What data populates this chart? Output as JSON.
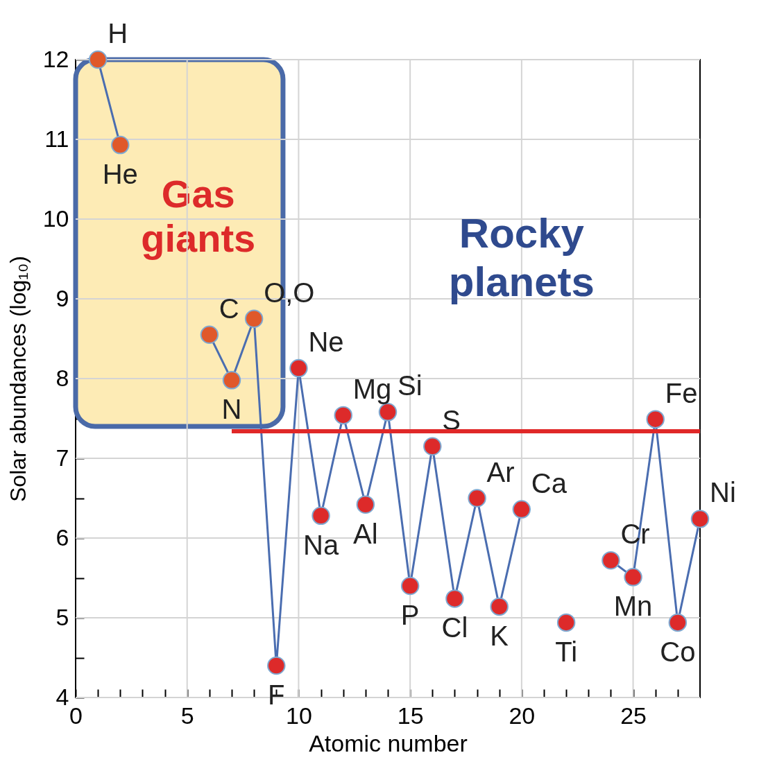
{
  "chart_data": {
    "type": "line",
    "xlabel": "Atomic number",
    "ylabel": "Solar abundances (log₁₀)",
    "xlim": [
      0,
      28
    ],
    "ylim": [
      4,
      12
    ],
    "xticks": [
      0,
      {
        "value": 1,
        "label": null
      },
      {
        "value": 2,
        "label": null
      },
      {
        "value": 3,
        "label": null
      },
      {
        "value": 4,
        "label": null
      },
      5,
      {
        "value": 6,
        "label": null
      },
      {
        "value": 7,
        "label": null
      },
      {
        "value": 8,
        "label": null
      },
      {
        "value": 9,
        "label": null
      },
      10,
      {
        "value": 11,
        "label": null
      },
      {
        "value": 12,
        "label": null
      },
      {
        "value": 13,
        "label": null
      },
      {
        "value": 14,
        "label": null
      },
      15,
      {
        "value": 16,
        "label": null
      },
      {
        "value": 17,
        "label": null
      },
      {
        "value": 18,
        "label": null
      },
      {
        "value": 19,
        "label": null
      },
      20,
      {
        "value": 21,
        "label": null
      },
      {
        "value": 22,
        "label": null
      },
      {
        "value": 23,
        "label": null
      },
      {
        "value": 24,
        "label": null
      },
      25,
      {
        "value": 26,
        "label": null
      },
      {
        "value": 27,
        "label": null
      }
    ],
    "yticks": [
      4,
      {
        "value": 4.5,
        "label": null
      },
      5,
      {
        "value": 5.5,
        "label": null
      },
      6,
      {
        "value": 6.5,
        "label": null
      },
      7,
      {
        "value": 7.5,
        "label": null
      },
      8,
      {
        "value": 8.5,
        "label": null
      },
      9,
      {
        "value": 9.5,
        "label": null
      },
      10,
      {
        "value": 10.5,
        "label": null
      },
      11,
      {
        "value": 11.5,
        "label": null
      },
      12
    ],
    "grid": true,
    "marker": "circle",
    "line_style": "solid",
    "series": [
      {
        "type": "line",
        "color": "#4a6db0",
        "x": [
          1,
          2,
          3,
          4,
          5,
          6,
          7,
          8,
          9,
          10,
          11,
          12,
          13,
          14,
          15,
          16,
          17,
          18,
          19,
          20,
          21,
          22,
          23,
          24,
          25,
          26,
          27,
          28
        ],
        "values": [
          12.0,
          10.93,
          null,
          null,
          null,
          8.55,
          7.98,
          8.75,
          4.4,
          8.13,
          6.28,
          7.54,
          6.42,
          7.58,
          5.4,
          7.15,
          5.24,
          6.5,
          5.14,
          6.36,
          null,
          4.94,
          null,
          5.72,
          5.51,
          7.49,
          4.94,
          6.24
        ],
        "colors": [
          "#e0582a",
          "#e0582a",
          null,
          null,
          null,
          "#e0582a",
          "#e0582a",
          "#e0582a",
          "#dd2a2a",
          "#dd2a2a",
          "#dd2a2a",
          "#dd2a2a",
          "#dd2a2a",
          "#dd2a2a",
          "#dd2a2a",
          "#dd2a2a",
          "#dd2a2a",
          "#dd2a2a",
          "#dd2a2a",
          "#dd2a2a",
          null,
          "#dd2a2a",
          null,
          "#dd2a2a",
          "#dd2a2a",
          "#dd2a2a",
          "#dd2a2a",
          "#dd2a2a"
        ],
        "value_labels": [
          "H",
          "He",
          null,
          null,
          null,
          "C",
          "N",
          "O,O",
          "F",
          "Ne",
          "Na",
          "Mg",
          "Al",
          "Si",
          "P",
          "S",
          "Cl",
          "Ar",
          "K",
          "Ca",
          null,
          "Ti",
          null,
          "Cr",
          "Mn",
          "Fe",
          "Co",
          "Ni"
        ]
      },
      {
        "type": "line",
        "color": "#e02828",
        "x": [
          7,
          28
        ],
        "values": [
          7.34,
          7.34
        ],
        "marker": "none"
      }
    ],
    "bands": [
      {
        "axis": "x",
        "from": 0,
        "to": 9.3,
        "label": "Gas giants",
        "color": "#fdebb5"
      }
    ],
    "annotations": [
      "Rocky planets"
    ]
  }
}
